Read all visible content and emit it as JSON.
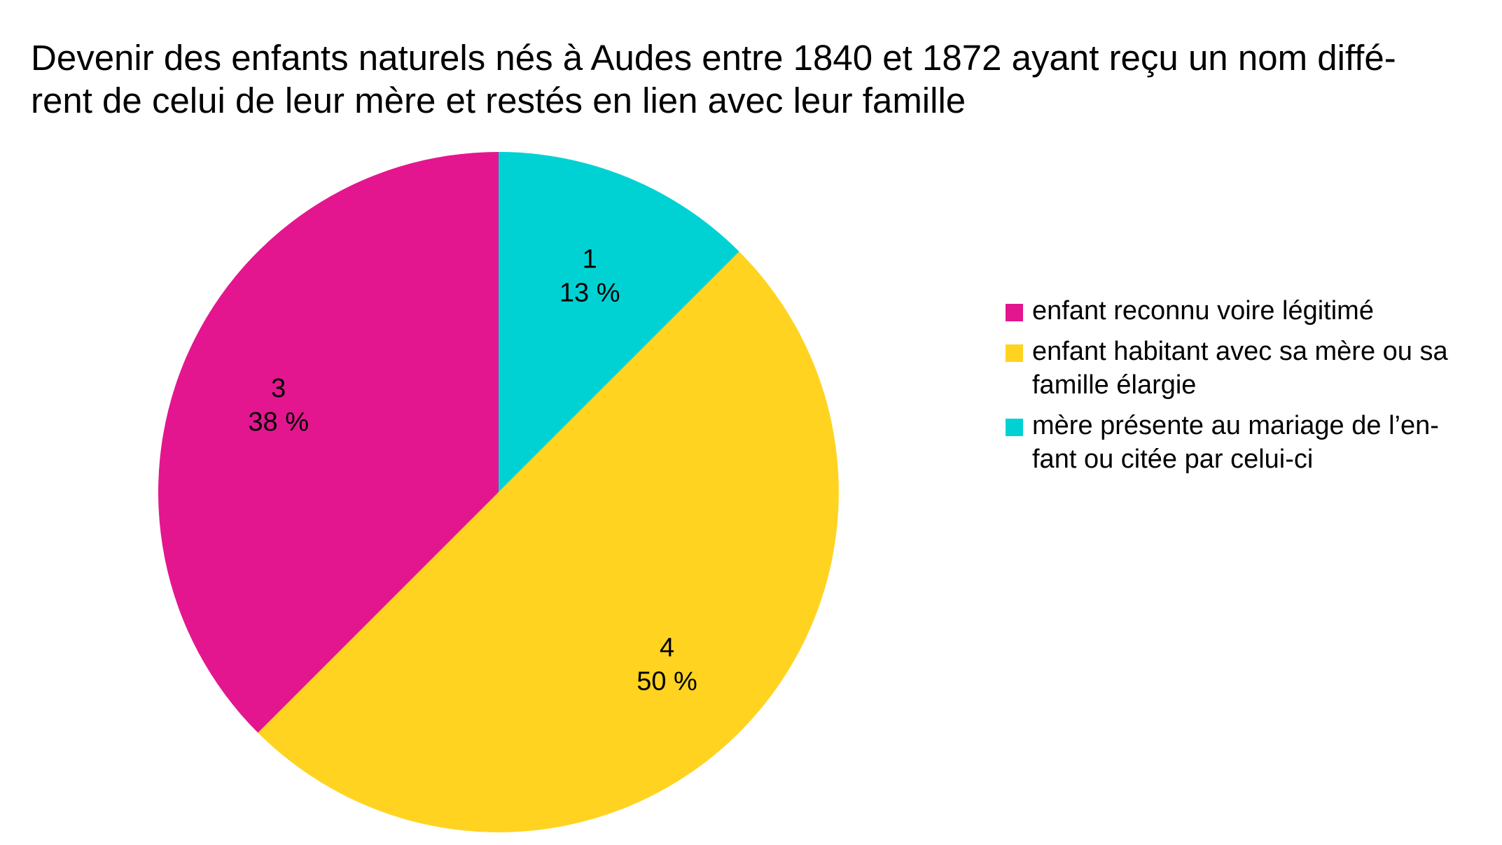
{
  "chart_data": {
    "type": "pie",
    "title_lines": [
      "Devenir des enfants naturels nés à Audes entre 1840 et 1872 ayant reçu un nom diffé-",
      "rent de celui de leur mère et restés en lien avec leur famille"
    ],
    "slices": [
      {
        "label_lines": [
          "mère présente au mariage de l’en-",
          "fant ou citée par celui-ci"
        ],
        "value": 1,
        "percent_label": "13 %",
        "value_label": "1",
        "color": "#00d2d3"
      },
      {
        "label_lines": [
          "enfant habitant avec sa mère ou sa",
          "famille élargie"
        ],
        "value": 4,
        "percent_label": "50 %",
        "value_label": "4",
        "color": "#ffd320"
      },
      {
        "label_lines": [
          "enfant reconnu voire légitimé"
        ],
        "value": 3,
        "percent_label": "38 %",
        "value_label": "3",
        "color": "#e3168f"
      }
    ],
    "legend_order": [
      2,
      1,
      0
    ],
    "legend_position": "right",
    "start": "top, clockwise"
  }
}
